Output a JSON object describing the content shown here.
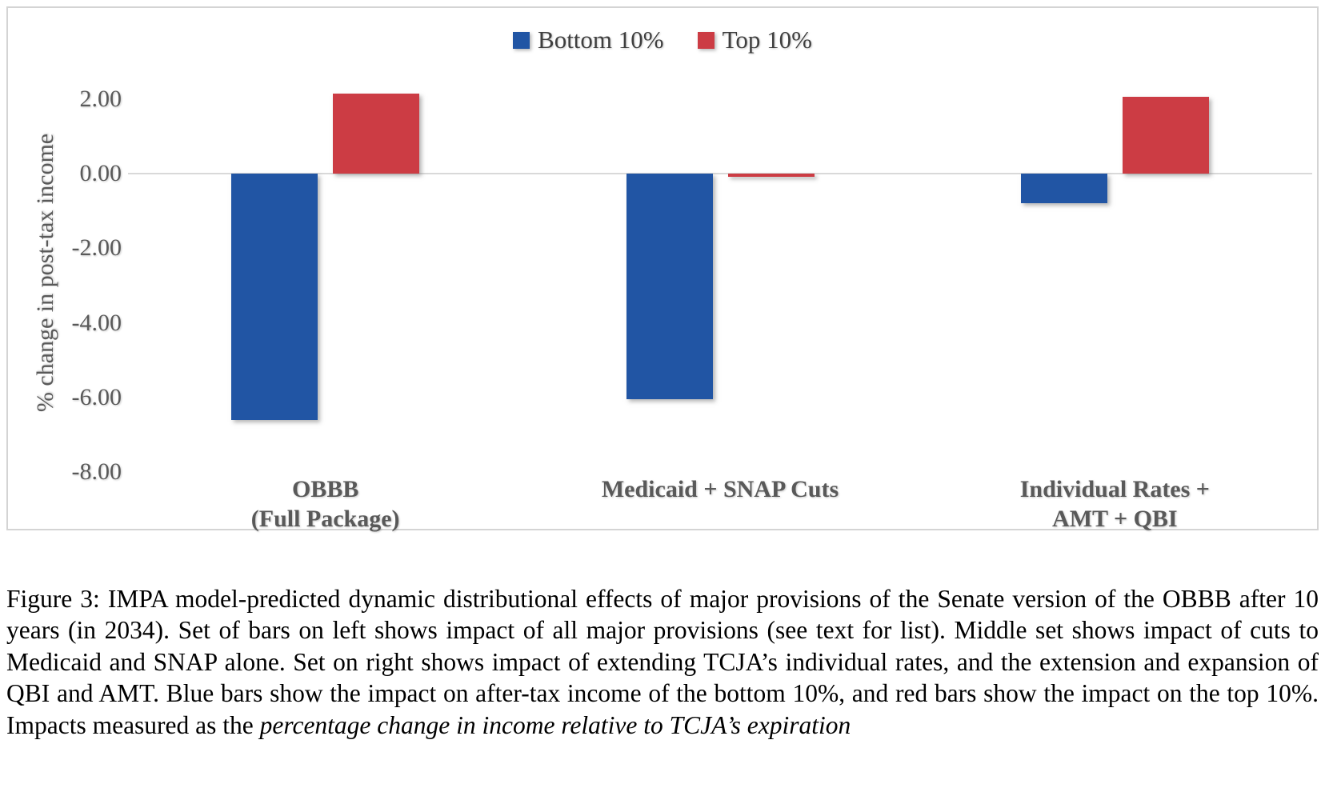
{
  "figure": {
    "caption_normal": "Figure 3: IMPA model-predicted dynamic distributional effects of major provisions of the Senate version of the OBBB after 10 years (in 2034). Set of bars on left shows impact of all major provisions (see text for list). Middle set shows impact of cuts to Medicaid and SNAP alone. Set on right shows impact of extending TCJA’s individual rates, and the extension and expansion of QBI and AMT. Blue bars show the impact on after-tax income of the bottom 10%, and red bars show the impact on the top 10%. Impacts measured as the ",
    "caption_italic": "percentage change in income relative to TCJA’s expiration"
  },
  "chart_data": {
    "type": "bar",
    "categories": [
      "OBBB\n(Full Package)",
      "Medicaid + SNAP Cuts",
      "Individual Rates +\nAMT + QBI"
    ],
    "series": [
      {
        "name": "Bottom 10%",
        "color": "#2155A4",
        "values": [
          -6.6,
          -6.05,
          -0.8
        ]
      },
      {
        "name": "Top 10%",
        "color": "#CC3C44",
        "values": [
          2.15,
          -0.08,
          2.05
        ]
      }
    ],
    "title": "",
    "xlabel": "",
    "ylabel": "% change in post-tax income",
    "ylim": [
      -8,
      2
    ],
    "yticks": [
      2,
      0,
      -2,
      -4,
      -6,
      -8
    ],
    "ytick_labels": [
      "2.00",
      "0.00",
      "-2.00",
      "-4.00",
      "-6.00",
      "-8.00"
    ],
    "legend_position": "top-center",
    "grid": false
  }
}
